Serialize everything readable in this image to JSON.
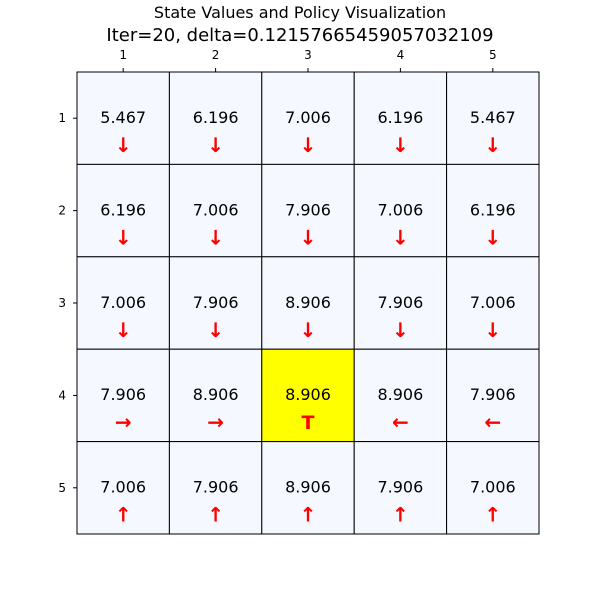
{
  "chart_data": {
    "type": "heatmap",
    "title": "State Values and Policy Visualization",
    "subtitle": "Iter=20, delta=0.12157665459057032109",
    "x_tick_labels": [
      "1",
      "2",
      "3",
      "4",
      "5"
    ],
    "y_tick_labels": [
      "1",
      "2",
      "3",
      "4",
      "5"
    ],
    "x_axis_position": "top",
    "grid": true,
    "cells": [
      [
        "5.467",
        "6.196",
        "7.006",
        "6.196",
        "5.467"
      ],
      [
        "6.196",
        "7.006",
        "7.906",
        "7.006",
        "6.196"
      ],
      [
        "7.006",
        "7.906",
        "8.906",
        "7.906",
        "7.006"
      ],
      [
        "7.906",
        "8.906",
        "8.906",
        "8.906",
        "7.906"
      ],
      [
        "7.006",
        "7.906",
        "8.906",
        "7.906",
        "7.006"
      ]
    ],
    "policy": [
      [
        "↓",
        "↓",
        "↓",
        "↓",
        "↓"
      ],
      [
        "↓",
        "↓",
        "↓",
        "↓",
        "↓"
      ],
      [
        "↓",
        "↓",
        "↓",
        "↓",
        "↓"
      ],
      [
        "→",
        "→",
        "T",
        "←",
        "←"
      ],
      [
        "↑",
        "↑",
        "↑",
        "↑",
        "↑"
      ]
    ],
    "terminal_cell": {
      "row": 4,
      "col": 3
    },
    "colors": {
      "cell_fill": "#f5f9ff",
      "terminal_fill": "#ffff00",
      "policy_arrow": "#ff0000",
      "grid_line": "#000000"
    }
  }
}
